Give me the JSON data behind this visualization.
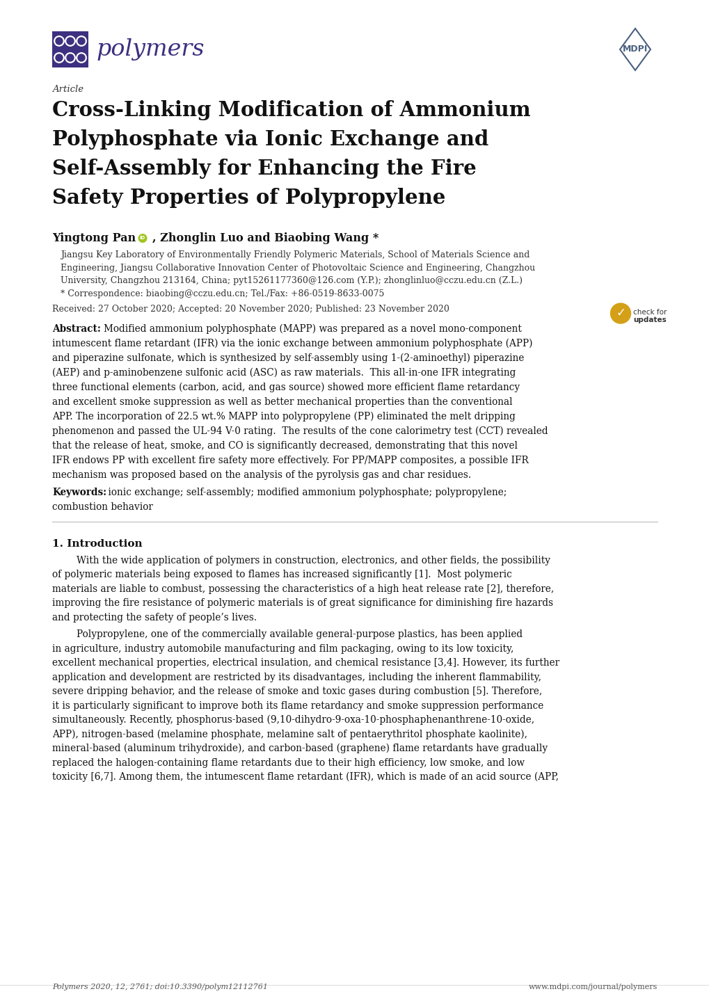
{
  "background_color": "#ffffff",
  "page_width": 10.2,
  "page_height": 14.42,
  "logo_color": "#3d3080",
  "mdpi_color": "#4a6080",
  "article_label": "Article",
  "title_line1": "Cross-Linking Modification of Ammonium",
  "title_line2": "Polyphosphate via Ionic Exchange and",
  "title_line3": "Self-Assembly for Enhancing the Fire",
  "title_line4": "Safety Properties of Polypropylene",
  "authors_part1": "Yingtong Pan ",
  "authors_part2": ", Zhonglin Luo and Biaobing Wang *",
  "affiliation_line1": "Jiangsu Key Laboratory of Environmentally Friendly Polymeric Materials, School of Materials Science and",
  "affiliation_line2": "Engineering, Jiangsu Collaborative Innovation Center of Photovoltaic Science and Engineering, Changzhou",
  "affiliation_line3": "University, Changzhou 213164, China; pyt15261177360@126.com (Y.P.); zhonglinluo@cczu.edu.cn (Z.L.)",
  "correspondence": "* Correspondence: biaobing@cczu.edu.cn; Tel./Fax: +86-0519-8633-0075",
  "received_line": "Received: 27 October 2020; Accepted: 20 November 2020; Published: 23 November 2020",
  "abstract_label": "Abstract:",
  "abstract_body": "Modified ammonium polyphosphate (MAPP) was prepared as a novel mono-component\nintumescent flame retardant (IFR) via the ionic exchange between ammonium polyphosphate (APP)\nand piperazine sulfonate, which is synthesized by self-assembly using 1-(2-aminoethyl) piperazine\n(AEP) and p-aminobenzene sulfonic acid (ASC) as raw materials.  This all-in-one IFR integrating\nthree functional elements (carbon, acid, and gas source) showed more efficient flame retardancy\nand excellent smoke suppression as well as better mechanical properties than the conventional\nAPP. The incorporation of 22.5 wt.% MAPP into polypropylene (PP) eliminated the melt dripping\nphenomenon and passed the UL-94 V-0 rating.  The results of the cone calorimetry test (CCT) revealed\nthat the release of heat, smoke, and CO is significantly decreased, demonstrating that this novel\nIFR endows PP with excellent fire safety more effectively. For PP/MAPP composites, a possible IFR\nmechanism was proposed based on the analysis of the pyrolysis gas and char residues.",
  "keywords_label": "Keywords:",
  "keywords_body": " ionic exchange; self-assembly; modified ammonium polyphosphate; polypropylene;\ncombustion behavior",
  "section1_title": "1. Introduction",
  "intro_para1_line1": "With the wide application of polymers in construction, electronics, and other fields, the possibility",
  "intro_para1_line2": "of polymeric materials being exposed to flames has increased significantly [1].  Most polymeric",
  "intro_para1_line3": "materials are liable to combust, possessing the characteristics of a high heat release rate [2], therefore,",
  "intro_para1_line4": "improving the fire resistance of polymeric materials is of great significance for diminishing fire hazards",
  "intro_para1_line5": "and protecting the safety of people’s lives.",
  "intro_para2_line1": "Polypropylene, one of the commercially available general-purpose plastics, has been applied",
  "intro_para2_line2": "in agriculture, industry automobile manufacturing and film packaging, owing to its low toxicity,",
  "intro_para2_line3": "excellent mechanical properties, electrical insulation, and chemical resistance [3,4]. However, its further",
  "intro_para2_line4": "application and development are restricted by its disadvantages, including the inherent flammability,",
  "intro_para2_line5": "severe dripping behavior, and the release of smoke and toxic gases during combustion [5]. Therefore,",
  "intro_para2_line6": "it is particularly significant to improve both its flame retardancy and smoke suppression performance",
  "intro_para2_line7": "simultaneously. Recently, phosphorus-based (9,10-dihydro-9-oxa-10-phosphaphenanthrene-10-oxide,",
  "intro_para2_line8": "APP), nitrogen-based (melamine phosphate, melamine salt of pentaerythritol phosphate kaolinite),",
  "intro_para2_line9": "mineral-based (aluminum trihydroxide), and carbon-based (graphene) flame retardants have gradually",
  "intro_para2_line10": "replaced the halogen-containing flame retardants due to their high efficiency, low smoke, and low",
  "intro_para2_line11": "toxicity [6,7]. Among them, the intumescent flame retardant (IFR), which is made of an acid source (APP,",
  "footer_left": "Polymers 2020, 12, 2761; doi:10.3390/polym12112761",
  "footer_right": "www.mdpi.com/journal/polymers",
  "polymers_text": "polymers",
  "mdpi_text": "MDPI"
}
